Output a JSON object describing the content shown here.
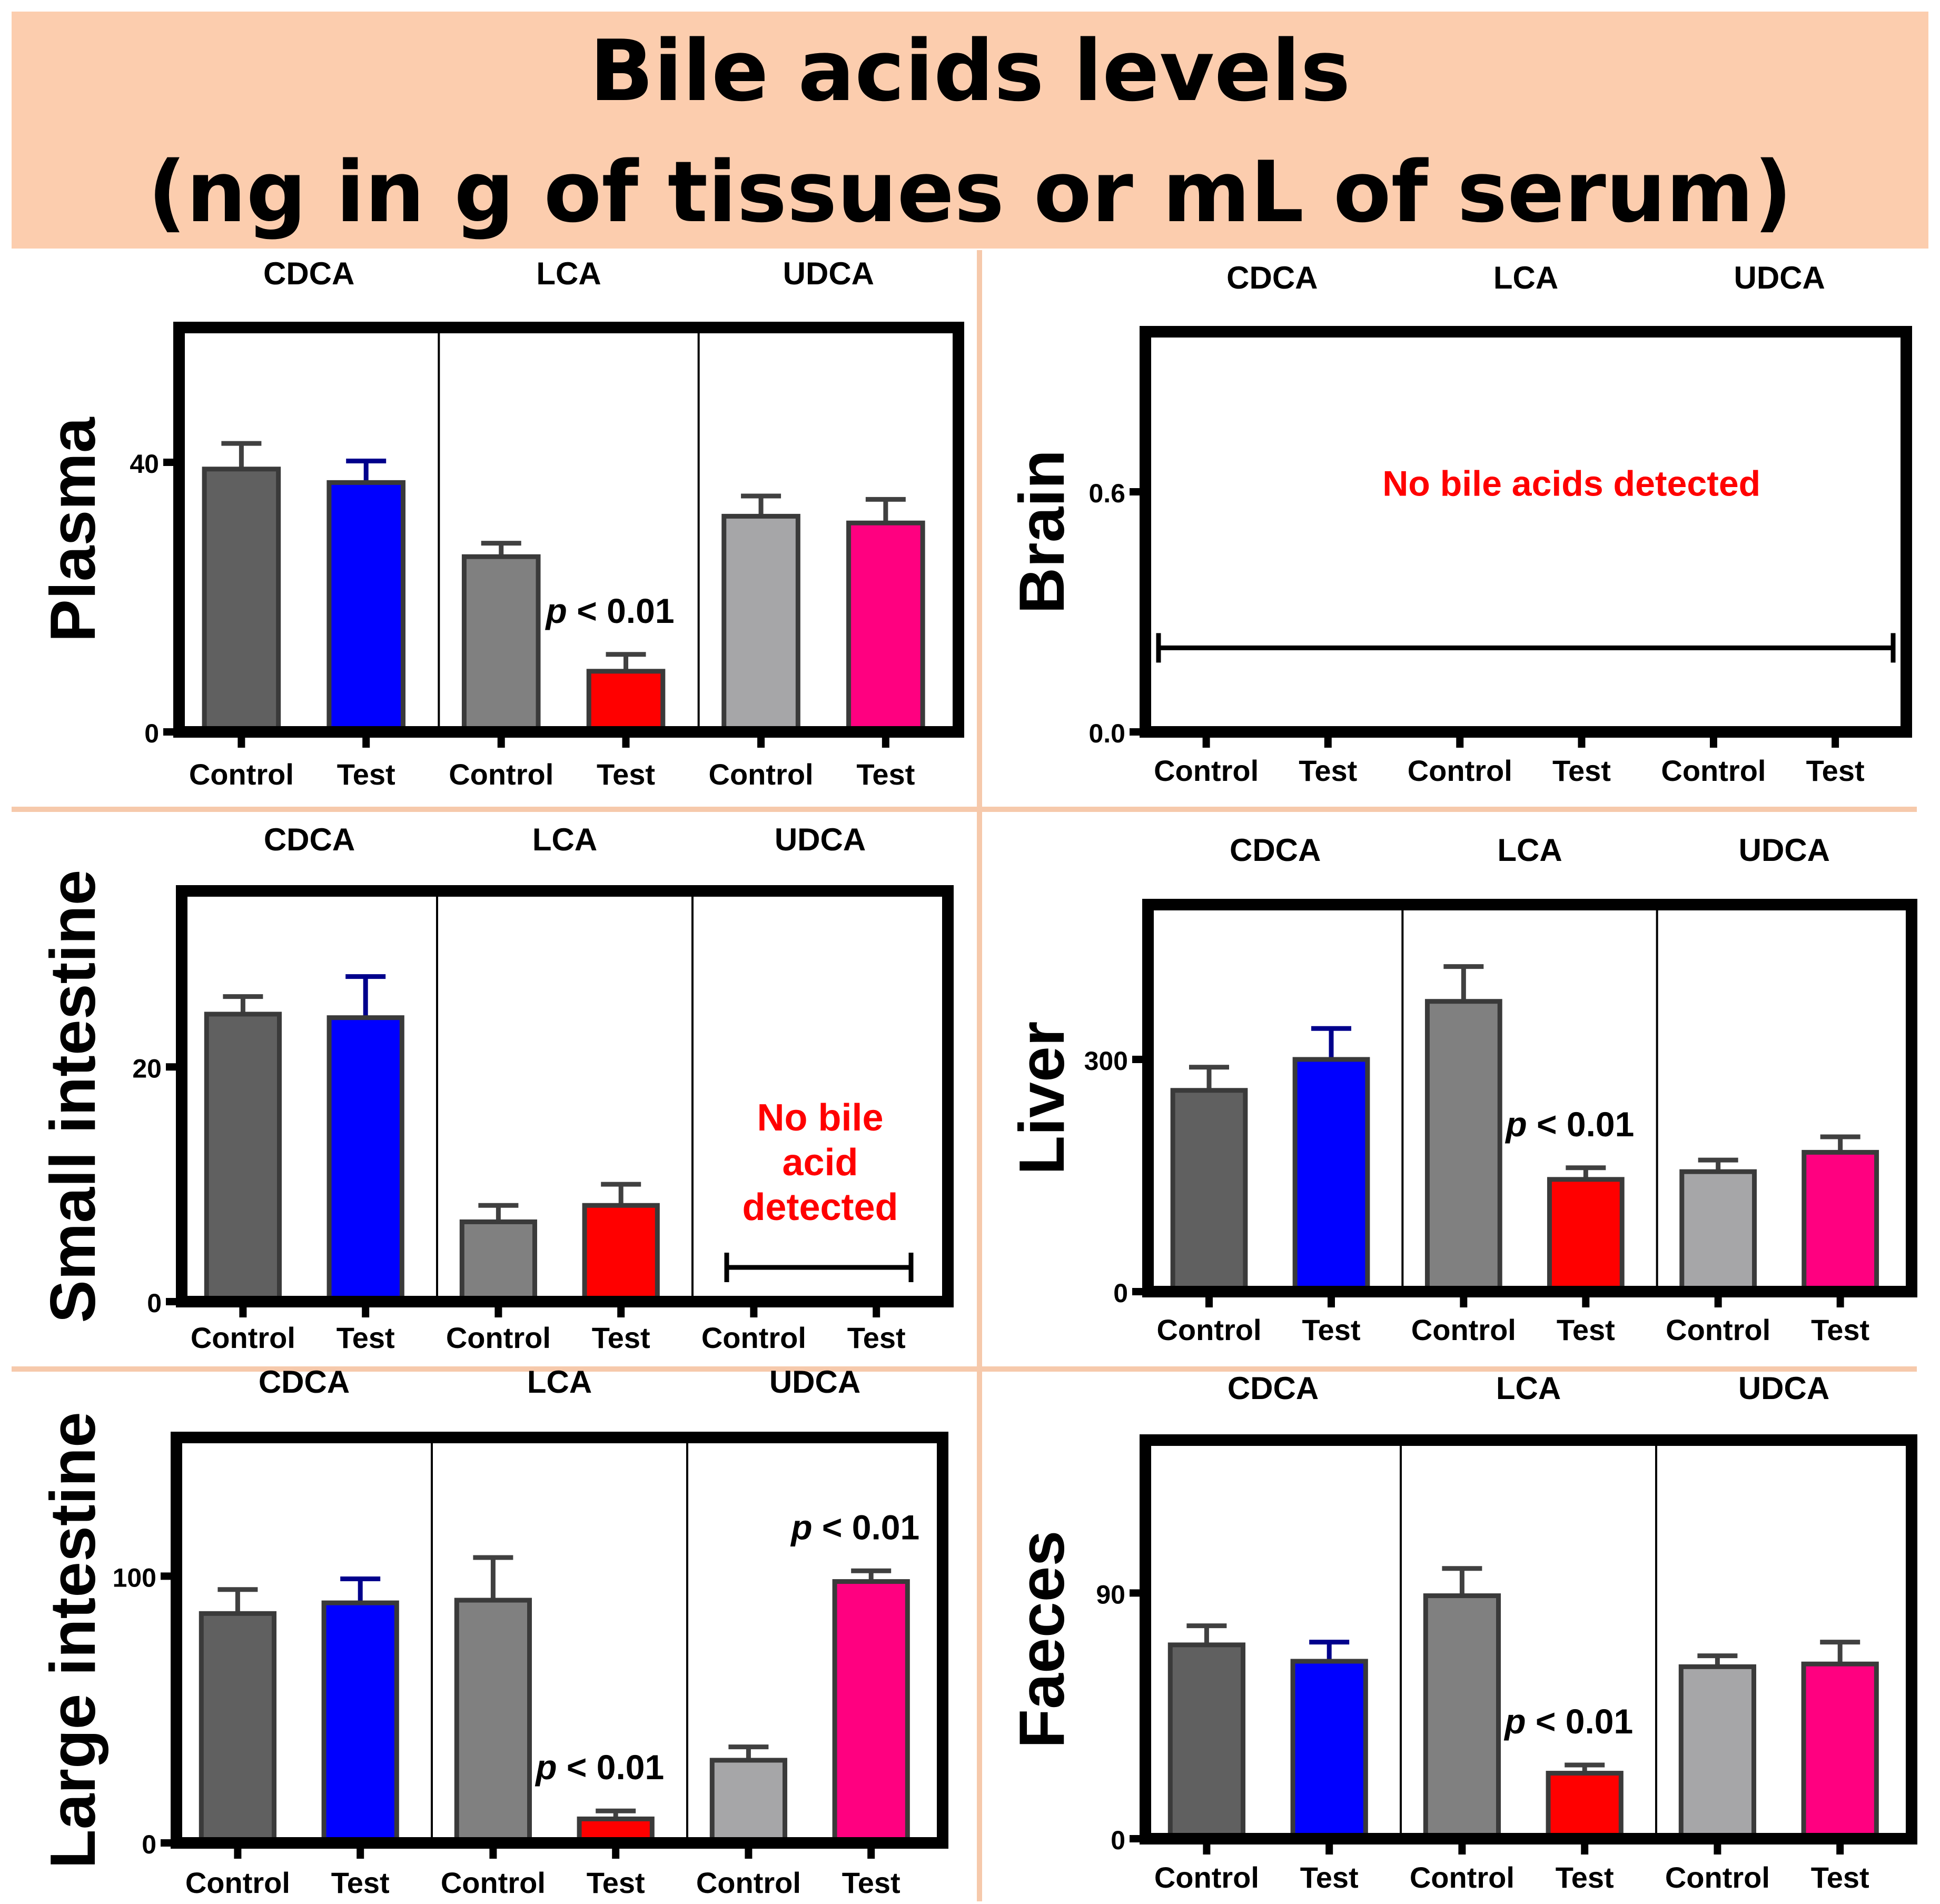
{
  "title": {
    "line1": "Bile acids levels",
    "line2": "(ng in g of tissues or mL of serum)"
  },
  "colors": {
    "banner": "#FCCDAE",
    "divider": "#F6C9AB",
    "cdca_control": "#606060",
    "cdca_test": "#0000FF",
    "lca_control": "#808080",
    "lca_test": "#FF0000",
    "udca_control": "#A6A6A8",
    "udca_test": "#FF0080",
    "annotation": "#FF0000"
  },
  "chart_data": [
    {
      "type": "bar",
      "panel": "Plasma",
      "groups": [
        "CDCA",
        "LCA",
        "UDCA"
      ],
      "categories": [
        "Control",
        "Test"
      ],
      "yticks": [
        0,
        40
      ],
      "ylim": [
        0,
        60
      ],
      "series": [
        {
          "name": "CDCA",
          "values": [
            39,
            37
          ],
          "errors": [
            3.8,
            3.2
          ]
        },
        {
          "name": "LCA",
          "values": [
            26,
            9
          ],
          "errors": [
            2,
            2.5
          ]
        },
        {
          "name": "UDCA",
          "values": [
            32,
            31
          ],
          "errors": [
            3,
            3.5
          ]
        }
      ],
      "annotations": [
        {
          "text": "p < 0.01",
          "group": 1
        }
      ]
    },
    {
      "type": "bar",
      "panel": "Brain",
      "groups": [
        "CDCA",
        "LCA",
        "UDCA"
      ],
      "categories": [
        "Control",
        "Test"
      ],
      "yticks": [
        0.0,
        0.6
      ],
      "ylim": [
        0,
        1
      ],
      "series": [],
      "note": "No bile acids detected"
    },
    {
      "type": "bar",
      "panel": "Small intestine",
      "groups": [
        "CDCA",
        "LCA",
        "UDCA"
      ],
      "categories": [
        "Control",
        "Test"
      ],
      "yticks": [
        0,
        20
      ],
      "ylim": [
        0,
        35
      ],
      "series": [
        {
          "name": "CDCA",
          "values": [
            24.5,
            24.2
          ],
          "errors": [
            1.5,
            3.5
          ]
        },
        {
          "name": "LCA",
          "values": [
            6.8,
            8.2
          ],
          "errors": [
            1.4,
            1.8
          ]
        },
        {
          "name": "UDCA",
          "values": null
        }
      ],
      "note_lines": [
        "No bile",
        "acid",
        "detected"
      ]
    },
    {
      "type": "bar",
      "panel": "Liver",
      "groups": [
        "CDCA",
        "LCA",
        "UDCA"
      ],
      "categories": [
        "Control",
        "Test"
      ],
      "yticks": [
        0,
        300
      ],
      "ylim": [
        0,
        500
      ],
      "series": [
        {
          "name": "CDCA",
          "values": [
            260,
            300
          ],
          "errors": [
            30,
            40
          ]
        },
        {
          "name": "LCA",
          "values": [
            375,
            145
          ],
          "errors": [
            45,
            15
          ]
        },
        {
          "name": "UDCA",
          "values": [
            155,
            180
          ],
          "errors": [
            15,
            20
          ]
        }
      ],
      "annotations": [
        {
          "text": "p < 0.01",
          "group": 1
        }
      ]
    },
    {
      "type": "bar",
      "panel": "Large intestine",
      "groups": [
        "CDCA",
        "LCA",
        "UDCA"
      ],
      "categories": [
        "Control",
        "Test"
      ],
      "yticks": [
        0,
        100
      ],
      "ylim": [
        0,
        152
      ],
      "series": [
        {
          "name": "CDCA",
          "values": [
            86,
            90
          ],
          "errors": [
            9,
            9
          ]
        },
        {
          "name": "LCA",
          "values": [
            91,
            9
          ],
          "errors": [
            16,
            3
          ]
        },
        {
          "name": "UDCA",
          "values": [
            31,
            98
          ],
          "errors": [
            5,
            4
          ]
        }
      ],
      "annotations": [
        {
          "text": "p < 0.01",
          "group": 1
        },
        {
          "text": "p < 0.01",
          "group": 2
        }
      ]
    },
    {
      "type": "bar",
      "panel": "Faeces",
      "groups": [
        "CDCA",
        "LCA",
        "UDCA"
      ],
      "categories": [
        "Control",
        "Test"
      ],
      "yticks": [
        0,
        90
      ],
      "ylim": [
        0,
        146
      ],
      "series": [
        {
          "name": "CDCA",
          "values": [
            71,
            65
          ],
          "errors": [
            7,
            7
          ]
        },
        {
          "name": "LCA",
          "values": [
            89,
            24
          ],
          "errors": [
            10,
            3
          ]
        },
        {
          "name": "UDCA",
          "values": [
            63,
            64
          ],
          "errors": [
            4,
            8
          ]
        }
      ],
      "annotations": [
        {
          "text": "p < 0.01",
          "group": 1
        }
      ]
    }
  ]
}
